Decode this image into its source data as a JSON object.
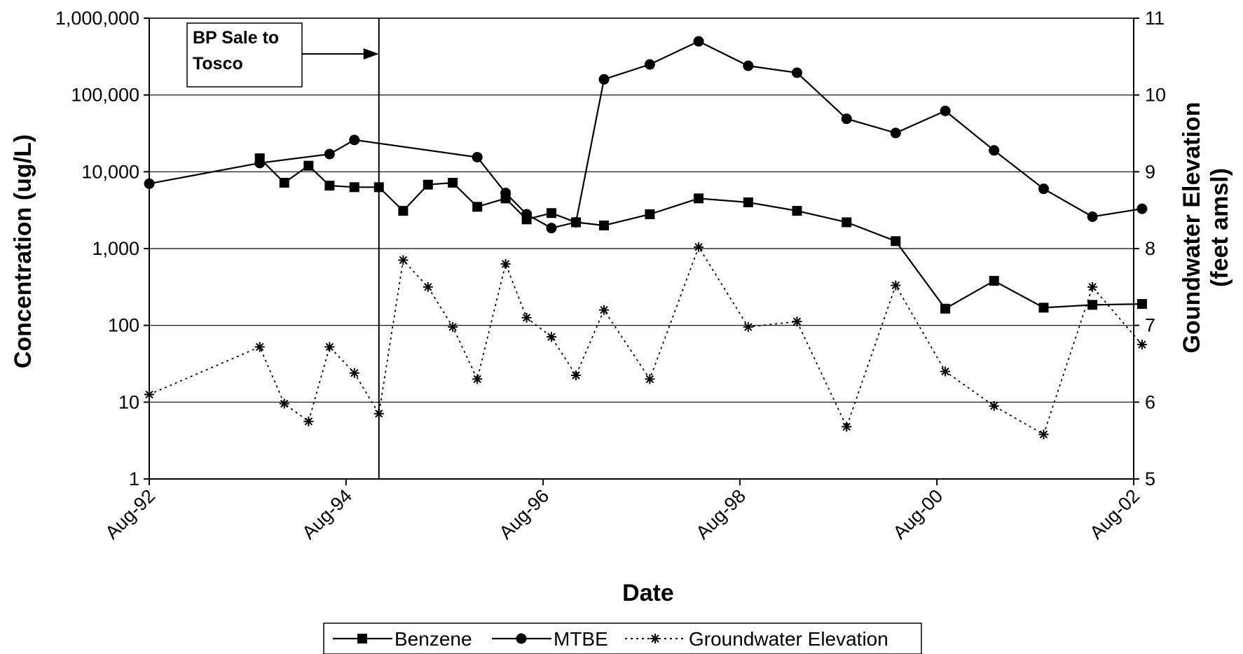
{
  "chart_data": {
    "type": "line",
    "title": "",
    "xlabel": "Date",
    "ylabel_left": "Concentration (ug/L)",
    "ylabel_right_line1": "Goundwater Elevation",
    "ylabel_right_line2": "(feet amsl)",
    "x_range": [
      "1992-08-01",
      "2002-08-01"
    ],
    "x_ticks": [
      "1992-08-01",
      "1994-08-01",
      "1996-08-01",
      "1998-08-01",
      "2000-08-01",
      "2002-08-01"
    ],
    "x_tick_labels": [
      "Aug-92",
      "Aug-94",
      "Aug-96",
      "Aug-98",
      "Aug-00",
      "Aug-02"
    ],
    "y_left": {
      "scale": "log",
      "range": [
        1,
        1000000
      ],
      "ticks": [
        1,
        10,
        100,
        1000,
        10000,
        100000,
        1000000
      ],
      "tick_labels": [
        "1",
        "10",
        "100",
        "1,000",
        "10,000",
        "100,000",
        "1,000,000"
      ]
    },
    "y_right": {
      "scale": "linear",
      "range": [
        5,
        11
      ],
      "ticks": [
        5,
        6,
        7,
        8,
        9,
        10,
        11
      ],
      "tick_labels": [
        "5",
        "6",
        "7",
        "8",
        "9",
        "10",
        "11"
      ]
    },
    "grid": "horizontal",
    "legend_position": "bottom",
    "annotation": {
      "line1": "BP Sale to",
      "line2": "Tosco",
      "x": "1994-12-01"
    },
    "series": [
      {
        "name": "Benzene",
        "axis": "left",
        "marker": "square",
        "line": "solid",
        "points": [
          [
            "1993-09-15",
            15000
          ],
          [
            "1993-12-15",
            7200
          ],
          [
            "1994-03-15",
            12000
          ],
          [
            "1994-06-01",
            6600
          ],
          [
            "1994-09-01",
            6300
          ],
          [
            "1994-12-01",
            6300
          ],
          [
            "1995-03-01",
            3100
          ],
          [
            "1995-06-01",
            6800
          ],
          [
            "1995-09-01",
            7200
          ],
          [
            "1995-12-01",
            3500
          ],
          [
            "1996-03-15",
            4500
          ],
          [
            "1996-06-01",
            2400
          ],
          [
            "1996-09-01",
            2900
          ],
          [
            "1996-12-01",
            2200
          ],
          [
            "1997-03-15",
            2000
          ],
          [
            "1997-09-01",
            2800
          ],
          [
            "1998-03-01",
            4500
          ],
          [
            "1998-09-01",
            4000
          ],
          [
            "1999-03-01",
            3100
          ],
          [
            "1999-09-01",
            2200
          ],
          [
            "2000-03-01",
            1250
          ],
          [
            "2000-09-01",
            165
          ],
          [
            "2001-03-01",
            380
          ],
          [
            "2001-09-01",
            170
          ],
          [
            "2002-03-01",
            185
          ],
          [
            "2002-09-01",
            190
          ]
        ]
      },
      {
        "name": "MTBE",
        "axis": "left",
        "marker": "circle",
        "line": "solid",
        "points": [
          [
            "1992-08-01",
            7000
          ],
          [
            "1993-09-15",
            13000
          ],
          [
            "1994-06-01",
            17000
          ],
          [
            "1994-09-01",
            26000
          ],
          [
            "1995-12-01",
            15500
          ],
          [
            "1996-03-15",
            5300
          ],
          [
            "1996-06-01",
            2800
          ],
          [
            "1996-09-01",
            1850
          ],
          [
            "1996-12-01",
            2200
          ],
          [
            "1997-03-15",
            160000
          ],
          [
            "1997-09-01",
            250000
          ],
          [
            "1998-03-01",
            500000
          ],
          [
            "1998-09-01",
            240000
          ],
          [
            "1999-03-01",
            195000
          ],
          [
            "1999-09-01",
            49000
          ],
          [
            "2000-03-01",
            32000
          ],
          [
            "2000-09-01",
            62000
          ],
          [
            "2001-03-01",
            19000
          ],
          [
            "2001-09-01",
            6000
          ],
          [
            "2002-03-01",
            2600
          ],
          [
            "2002-09-01",
            3300
          ]
        ]
      },
      {
        "name": "Groundwater Elevation",
        "axis": "right",
        "marker": "asterisk",
        "line": "dotted",
        "points": [
          [
            "1992-08-01",
            6.1
          ],
          [
            "1993-09-15",
            6.72
          ],
          [
            "1993-12-15",
            5.98
          ],
          [
            "1994-03-15",
            5.75
          ],
          [
            "1994-06-01",
            6.72
          ],
          [
            "1994-09-01",
            6.38
          ],
          [
            "1994-12-01",
            5.85
          ],
          [
            "1995-03-01",
            7.85
          ],
          [
            "1995-06-01",
            7.5
          ],
          [
            "1995-09-01",
            6.98
          ],
          [
            "1995-12-01",
            6.3
          ],
          [
            "1996-03-15",
            7.8
          ],
          [
            "1996-06-01",
            7.1
          ],
          [
            "1996-09-01",
            6.85
          ],
          [
            "1996-12-01",
            6.35
          ],
          [
            "1997-03-15",
            7.2
          ],
          [
            "1997-09-01",
            6.3
          ],
          [
            "1998-03-01",
            8.02
          ],
          [
            "1998-09-01",
            6.98
          ],
          [
            "1999-03-01",
            7.05
          ],
          [
            "1999-09-01",
            5.68
          ],
          [
            "2000-03-01",
            7.52
          ],
          [
            "2000-09-01",
            6.4
          ],
          [
            "2001-03-01",
            5.95
          ],
          [
            "2001-09-01",
            5.58
          ],
          [
            "2002-03-01",
            7.5
          ],
          [
            "2002-09-01",
            6.75
          ]
        ]
      }
    ]
  }
}
